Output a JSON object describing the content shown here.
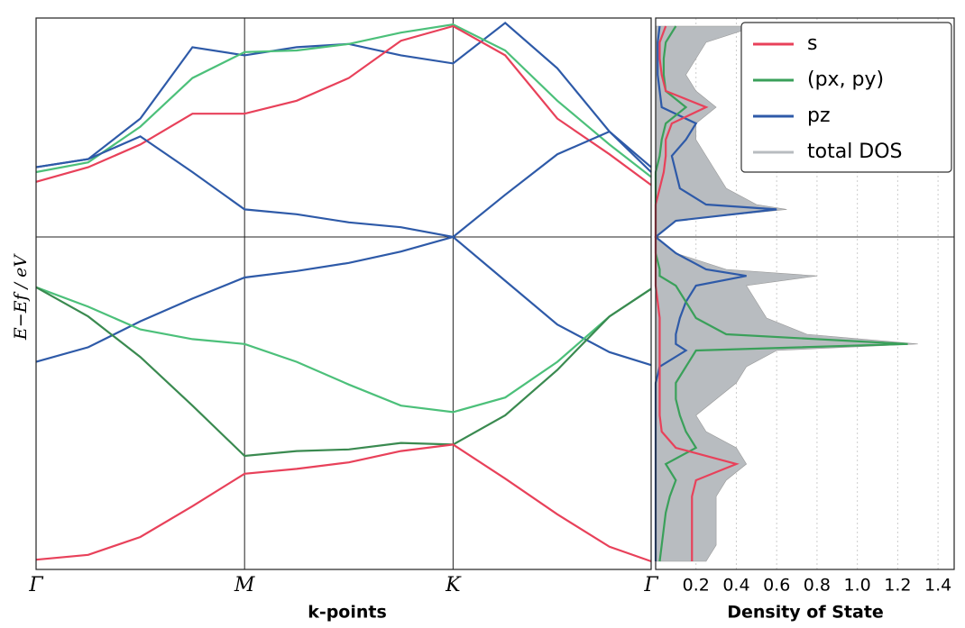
{
  "chart_data": [
    {
      "type": "line",
      "x_label": "k-points",
      "y_label": "E−Ef  /  eV",
      "x": [
        0,
        0.25,
        0.5,
        0.75,
        1,
        1.25,
        1.5,
        1.75,
        2,
        2.25,
        2.5,
        2.75,
        2.95
      ],
      "xlim": [
        0,
        2.95
      ],
      "xticks": [
        {
          "value": 0,
          "label": "Γ"
        },
        {
          "value": 1,
          "label": "M"
        },
        {
          "value": 2,
          "label": "K"
        },
        {
          "value": 2.95,
          "label": "Γ"
        }
      ],
      "ylim": [
        -20.5,
        13.5
      ],
      "hline": 0,
      "series": [
        {
          "color": "#e8415a",
          "values": [
            -19.9,
            -19.6,
            -18.5,
            -16.6,
            -14.6,
            -14.3,
            -13.9,
            -13.2,
            -12.8,
            -14.9,
            -17.1,
            -19.1,
            -20.0
          ]
        },
        {
          "color": "#3a8a50",
          "values": [
            -3.1,
            -4.9,
            -7.4,
            -10.4,
            -13.5,
            -13.2,
            -13.1,
            -12.7,
            -12.8,
            -11.0,
            -8.2,
            -4.9,
            -3.2
          ]
        },
        {
          "color": "#4cc07a",
          "values": [
            -3.1,
            -4.3,
            -5.7,
            -6.3,
            -6.6,
            -7.7,
            -9.1,
            -10.4,
            -10.8,
            -9.9,
            -7.7,
            -4.9,
            -3.2
          ]
        },
        {
          "color": "#2e5aa8",
          "values": [
            -7.7,
            -6.8,
            -5.2,
            -3.8,
            -2.5,
            -2.1,
            -1.6,
            -0.9,
            0,
            -2.7,
            -5.4,
            -7.1,
            -7.9
          ]
        },
        {
          "color": "#2e5aa8",
          "values": [
            4.3,
            4.8,
            6.2,
            4.0,
            1.7,
            1.4,
            0.9,
            0.6,
            0,
            2.6,
            5.1,
            6.5,
            4.3
          ]
        },
        {
          "color": "#e8415a",
          "values": [
            3.4,
            4.3,
            5.7,
            7.6,
            7.6,
            8.4,
            9.8,
            12.1,
            13.0,
            11.2,
            7.3,
            5.1,
            3.2
          ]
        },
        {
          "color": "#4cc07a",
          "values": [
            4.0,
            4.6,
            6.8,
            9.8,
            11.4,
            11.5,
            11.9,
            12.6,
            13.1,
            11.5,
            8.4,
            5.7,
            3.7
          ]
        },
        {
          "color": "#2e5aa8",
          "values": [
            4.3,
            4.8,
            7.3,
            11.7,
            11.2,
            11.7,
            11.9,
            11.2,
            10.7,
            13.2,
            10.4,
            6.5,
            4.0
          ]
        }
      ]
    },
    {
      "type": "line",
      "orientation": "horizontal",
      "x_label": "Density of State",
      "xlim": [
        0,
        1.48
      ],
      "xticks": [
        0.2,
        0.4,
        0.6,
        0.8,
        {
          "value": 1,
          "label": "1.0"
        },
        1.2,
        1.4
      ],
      "grid": true,
      "ylim": [
        -20.5,
        13.5
      ],
      "hline": 0,
      "legend": "upper right",
      "y": [
        -20,
        -19,
        -18,
        -17,
        -16,
        -15,
        -14,
        -13,
        -12,
        -11,
        -10,
        -9,
        -8,
        -7,
        -6.6,
        -6,
        -5,
        -4,
        -3,
        -2.4,
        -2,
        -1,
        0,
        1,
        1.7,
        2,
        3,
        4,
        5,
        6,
        7,
        8,
        9,
        10,
        11,
        12,
        13
      ],
      "series": [
        {
          "name": "s",
          "color": "#e8415a",
          "values": [
            0.18,
            0.18,
            0.18,
            0.18,
            0.18,
            0.2,
            0.4,
            0.1,
            0.03,
            0.02,
            0.02,
            0.02,
            0.02,
            0.02,
            0.02,
            0.02,
            0.02,
            0.01,
            0,
            0,
            0,
            0,
            0,
            0,
            0,
            0,
            0.02,
            0.04,
            0.05,
            0.05,
            0.08,
            0.25,
            0.05,
            0.03,
            0.02,
            0.02,
            0.05
          ]
        },
        {
          "name": "(px, py)",
          "color": "#3aa05a",
          "values": [
            0.02,
            0.03,
            0.04,
            0.05,
            0.07,
            0.1,
            0.05,
            0.2,
            0.15,
            0.12,
            0.1,
            0.1,
            0.15,
            0.2,
            1.25,
            0.35,
            0.2,
            0.15,
            0.1,
            0.02,
            0.02,
            0,
            0,
            0,
            0,
            0,
            0,
            0,
            0.02,
            0.03,
            0.05,
            0.15,
            0.05,
            0.04,
            0.04,
            0.05,
            0.1
          ]
        },
        {
          "name": "pz",
          "color": "#2e5aa8",
          "values": [
            0,
            0,
            0,
            0,
            0,
            0,
            0,
            0,
            0,
            0,
            0,
            0,
            0.02,
            0.15,
            0.1,
            0.1,
            0.12,
            0.15,
            0.2,
            0.45,
            0.25,
            0.1,
            0,
            0.1,
            0.6,
            0.25,
            0.12,
            0.1,
            0.08,
            0.15,
            0.2,
            0.03,
            0.02,
            0.01,
            0.01,
            0.01,
            0.02
          ]
        },
        {
          "name": "total DOS",
          "color": "#b8bcc0",
          "fill": true,
          "values": [
            0.25,
            0.3,
            0.3,
            0.3,
            0.3,
            0.35,
            0.45,
            0.4,
            0.25,
            0.2,
            0.3,
            0.4,
            0.45,
            0.6,
            1.3,
            0.75,
            0.55,
            0.5,
            0.45,
            0.8,
            0.35,
            0.1,
            0,
            0.1,
            0.65,
            0.5,
            0.35,
            0.3,
            0.25,
            0.2,
            0.2,
            0.3,
            0.2,
            0.15,
            0.2,
            0.25,
            0.5
          ]
        }
      ]
    }
  ]
}
